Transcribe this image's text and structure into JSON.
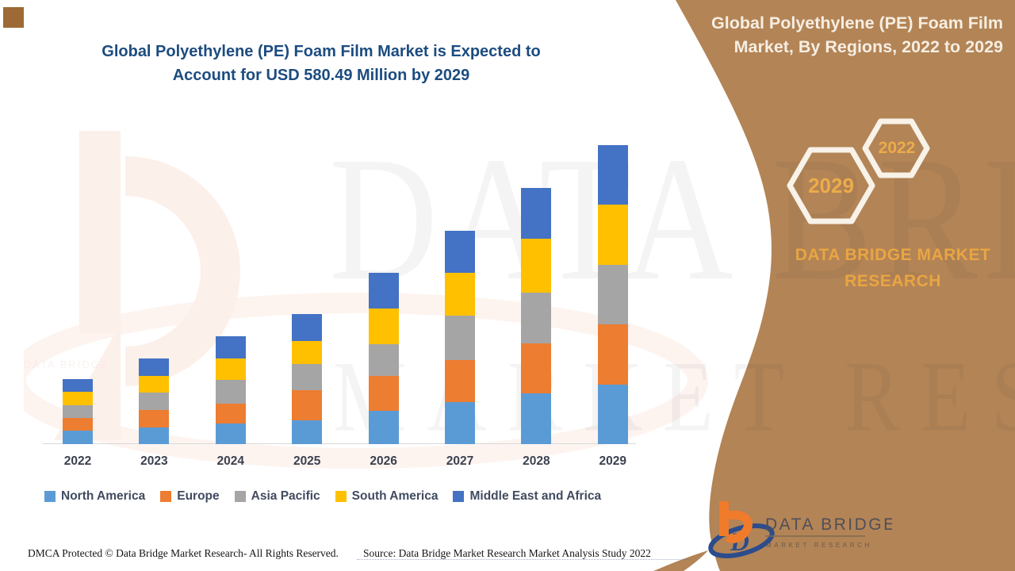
{
  "header": {
    "title_line1": "Global Polyethylene (PE) Foam Film Market is Expected to",
    "title_line2": "Account for USD 580.49 Million by 2029"
  },
  "sidebar": {
    "title_line1": "Global Polyethylene (PE) Foam Film",
    "title_line2": "Market, By Regions, 2022 to 2029",
    "hexagons": [
      {
        "year": "2029"
      },
      {
        "year": "2022"
      }
    ],
    "brand_line1": "DATA BRIDGE MARKET",
    "brand_line2": "RESEARCH",
    "logo_text": "DATA BRIDGE",
    "logo_subtext": "MARKET RESEARCH",
    "panel_color": "#B38456",
    "gold_color": "#E9A542"
  },
  "watermark": {
    "line1": "DATA BRIDGE",
    "line2": "MARKET RESEARCH",
    "mini_red_text": "DATA BRIDGE"
  },
  "footer": {
    "dmca": "DMCA Protected © Data Bridge Market Research- All Rights Reserved.",
    "source": "Source: Data Bridge Market Research Market Analysis Study 2022"
  },
  "chart_data": {
    "type": "bar",
    "stacked": true,
    "title": "Global Polyethylene (PE) Foam Film Market is Expected to Account for USD 580.49 Million by 2029",
    "unit": "USD Million",
    "categories": [
      "2022",
      "2023",
      "2024",
      "2025",
      "2026",
      "2027",
      "2028",
      "2029"
    ],
    "series": [
      {
        "name": "North America",
        "color": "#5B9BD5",
        "values": [
          26,
          33,
          40,
          47,
          65,
          81,
          98,
          116
        ]
      },
      {
        "name": "Europe",
        "color": "#ED7D31",
        "values": [
          25,
          33,
          38,
          58,
          67,
          83,
          98,
          116
        ]
      },
      {
        "name": "Asia Pacific",
        "color": "#A5A5A5",
        "values": [
          24,
          34,
          46,
          51,
          62,
          86,
          98,
          116
        ]
      },
      {
        "name": "South America",
        "color": "#FFC000",
        "values": [
          26,
          33,
          43,
          44,
          70,
          82,
          104,
          116
        ]
      },
      {
        "name": "Middle East and Africa",
        "color": "#4472C4",
        "values": [
          25,
          33,
          42,
          53,
          69,
          82,
          99,
          116.49
        ]
      }
    ],
    "totals_usd_million": [
      126,
      166,
      209,
      253,
      333,
      414,
      497,
      580.49
    ],
    "values_estimated_from_bar_heights": true,
    "grid": false,
    "value_axis_visible": false,
    "legend_position": "bottom"
  }
}
